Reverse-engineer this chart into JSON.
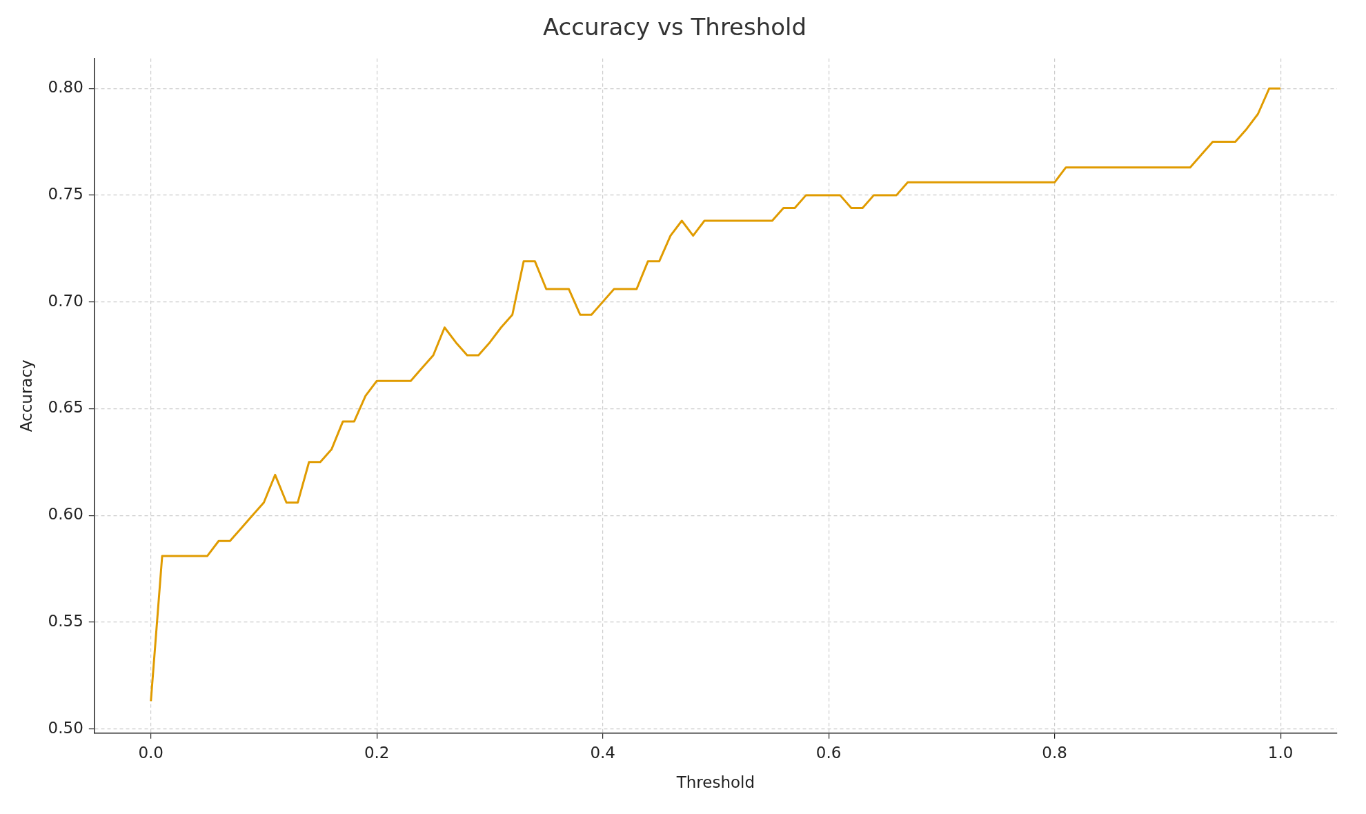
{
  "chart_data": {
    "type": "line",
    "title": "Accuracy vs Threshold",
    "xlabel": "Threshold",
    "ylabel": "Accuracy",
    "x": [
      0,
      0.01,
      0.02,
      0.03,
      0.04,
      0.05,
      0.06,
      0.07,
      0.08,
      0.09,
      0.1,
      0.11,
      0.12,
      0.13,
      0.14,
      0.15,
      0.16,
      0.17,
      0.18,
      0.19,
      0.2,
      0.21,
      0.22,
      0.23,
      0.24,
      0.25,
      0.26,
      0.27,
      0.28,
      0.29,
      0.3,
      0.31,
      0.32,
      0.33,
      0.34,
      0.35,
      0.36,
      0.37,
      0.38,
      0.39,
      0.4,
      0.41,
      0.42,
      0.43,
      0.44,
      0.45,
      0.46,
      0.47,
      0.48,
      0.49,
      0.5,
      0.51,
      0.52,
      0.53,
      0.54,
      0.55,
      0.56,
      0.57,
      0.58,
      0.59,
      0.6,
      0.61,
      0.62,
      0.63,
      0.64,
      0.65,
      0.66,
      0.67,
      0.68,
      0.69,
      0.7,
      0.71,
      0.72,
      0.73,
      0.74,
      0.75,
      0.76,
      0.77,
      0.78,
      0.79,
      0.8,
      0.81,
      0.82,
      0.83,
      0.84,
      0.85,
      0.86,
      0.87,
      0.88,
      0.89,
      0.9,
      0.91,
      0.92,
      0.93,
      0.94,
      0.95,
      0.96,
      0.97,
      0.98,
      0.99,
      1
    ],
    "series": [
      {
        "color": "#e09b00",
        "values": [
          0.513,
          0.581,
          0.581,
          0.581,
          0.581,
          0.581,
          0.588,
          0.588,
          0.594,
          0.6,
          0.606,
          0.619,
          0.606,
          0.606,
          0.625,
          0.625,
          0.631,
          0.644,
          0.644,
          0.656,
          0.663,
          0.663,
          0.663,
          0.663,
          0.669,
          0.675,
          0.688,
          0.681,
          0.675,
          0.675,
          0.681,
          0.688,
          0.694,
          0.719,
          0.719,
          0.706,
          0.706,
          0.706,
          0.694,
          0.694,
          0.7,
          0.706,
          0.706,
          0.706,
          0.719,
          0.719,
          0.731,
          0.738,
          0.731,
          0.738,
          0.738,
          0.738,
          0.738,
          0.738,
          0.738,
          0.738,
          0.744,
          0.744,
          0.75,
          0.75,
          0.75,
          0.75,
          0.744,
          0.744,
          0.75,
          0.75,
          0.75,
          0.756,
          0.756,
          0.756,
          0.756,
          0.756,
          0.756,
          0.756,
          0.756,
          0.756,
          0.756,
          0.756,
          0.756,
          0.756,
          0.756,
          0.763,
          0.763,
          0.763,
          0.763,
          0.763,
          0.763,
          0.763,
          0.763,
          0.763,
          0.763,
          0.763,
          0.763,
          0.769,
          0.775,
          0.775,
          0.775,
          0.781,
          0.788,
          0.8,
          0.8
        ]
      }
    ],
    "xlim": [
      -0.05,
      1.05
    ],
    "xticks": [
      {
        "value": 0,
        "label": "0.0"
      },
      {
        "value": 0.2,
        "label": "0.2"
      },
      {
        "value": 0.4,
        "label": "0.4"
      },
      {
        "value": 0.6,
        "label": "0.6"
      },
      {
        "value": 0.8,
        "label": "0.8"
      },
      {
        "value": 1,
        "label": "1.0"
      }
    ],
    "ylim": [
      0.498,
      0.814
    ],
    "yticks": [
      {
        "value": 0.5,
        "label": "0.50"
      },
      {
        "value": 0.55,
        "label": "0.55"
      },
      {
        "value": 0.6,
        "label": "0.60"
      },
      {
        "value": 0.65,
        "label": "0.65"
      },
      {
        "value": 0.7,
        "label": "0.70"
      },
      {
        "value": 0.75,
        "label": "0.75"
      },
      {
        "value": 0.8,
        "label": "0.80"
      }
    ],
    "grid": true,
    "marker": "none",
    "line_style": "solid"
  }
}
